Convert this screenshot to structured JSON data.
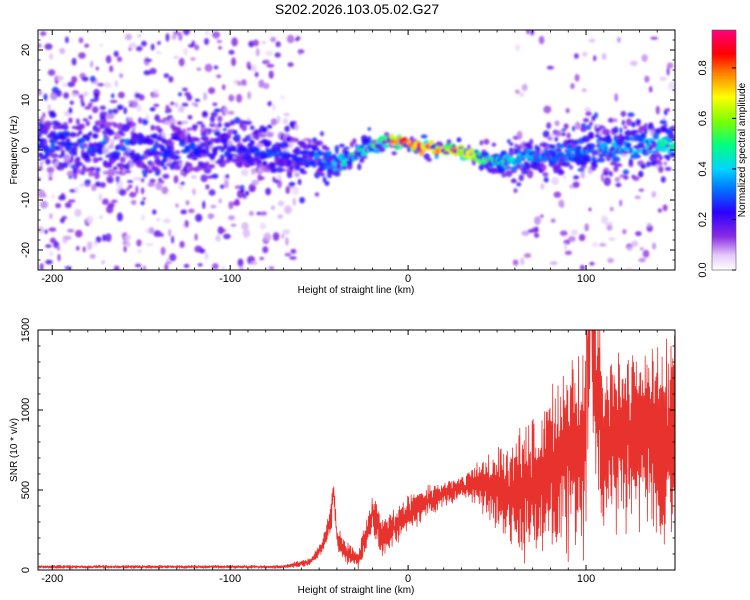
{
  "chart_data": [
    {
      "type": "heatmap",
      "title": "S202.2026.103.05.02.G27",
      "xlabel": "Height of straight line (km)",
      "ylabel": "Frequency (Hz)",
      "xlim": [
        -208,
        150
      ],
      "ylim": [
        -24,
        24
      ],
      "xticks": [
        -200,
        -100,
        0,
        100
      ],
      "xtick_labels": [
        "-200",
        "-100",
        "0",
        "100"
      ],
      "yticks": [
        -20,
        -10,
        0,
        10,
        20
      ],
      "ytick_labels": [
        "-20",
        "-10",
        "0",
        "10",
        "20"
      ],
      "colorbar": {
        "label": "Normalized spectral amplitude",
        "range": [
          0.0,
          0.95
        ],
        "ticks": [
          0.0,
          0.2,
          0.4,
          0.6,
          0.8
        ],
        "tick_labels": [
          "0.0",
          "0.2",
          "0.4",
          "0.6",
          "0.8"
        ]
      },
      "ridge": {
        "x": [
          -208,
          -150,
          -100,
          -60,
          -45,
          -40,
          -35,
          -30,
          -25,
          -20,
          -15,
          -10,
          -5,
          0,
          5,
          10,
          20,
          30,
          40,
          50,
          60,
          80,
          100,
          120,
          150
        ],
        "freq": [
          1,
          0.5,
          0,
          -1,
          -2,
          -3,
          -2,
          -1,
          0,
          1,
          1.5,
          2,
          1.5,
          1,
          0.5,
          0.5,
          0,
          -0.5,
          -1.5,
          -2.5,
          -2,
          -1,
          0,
          0.5,
          1.5
        ],
        "peak_amplitude": [
          0.3,
          0.3,
          0.25,
          0.3,
          0.35,
          0.4,
          0.45,
          0.5,
          0.5,
          0.55,
          0.6,
          0.7,
          0.85,
          0.9,
          0.95,
          0.9,
          0.85,
          0.8,
          0.6,
          0.5,
          0.45,
          0.35,
          0.35,
          0.4,
          0.45
        ],
        "spread_hz": [
          8,
          8,
          6,
          5,
          4,
          3,
          2,
          2,
          2,
          2,
          2,
          2,
          1.5,
          1.5,
          1.5,
          1.5,
          1.5,
          1.5,
          2,
          2,
          3,
          4,
          5,
          5,
          5
        ]
      }
    },
    {
      "type": "line",
      "title": "",
      "xlabel": "Height of straight line (km)",
      "ylabel": "SNR (10 * v/v)",
      "xlim": [
        -208,
        150
      ],
      "ylim": [
        0,
        1500
      ],
      "xticks": [
        -200,
        -100,
        0,
        100
      ],
      "xtick_labels": [
        "-200",
        "-100",
        "0",
        "100"
      ],
      "yticks": [
        0,
        500,
        1000,
        1500
      ],
      "ytick_labels": [
        "0",
        "500",
        "1000",
        "1500"
      ],
      "series": [
        {
          "name": "SNR",
          "color": "#e8322e",
          "x": [
            -208,
            -160,
            -110,
            -70,
            -55,
            -48,
            -43,
            -42,
            -40,
            -35,
            -28,
            -25,
            -20,
            -15,
            -10,
            -5,
            0,
            10,
            20,
            30,
            40,
            50,
            60,
            70,
            80,
            90,
            100,
            102,
            110,
            120,
            130,
            140,
            150
          ],
          "y": [
            20,
            20,
            20,
            20,
            50,
            150,
            350,
            520,
            200,
            110,
            60,
            160,
            360,
            200,
            240,
            300,
            350,
            420,
            480,
            520,
            540,
            500,
            480,
            520,
            650,
            700,
            750,
            1500,
            800,
            850,
            900,
            800,
            850
          ],
          "spread": [
            8,
            8,
            8,
            8,
            20,
            40,
            80,
            60,
            60,
            60,
            50,
            80,
            120,
            100,
            100,
            100,
            100,
            80,
            70,
            50,
            120,
            200,
            300,
            400,
            450,
            500,
            500,
            500,
            500,
            500,
            500,
            500,
            500
          ]
        }
      ]
    }
  ]
}
